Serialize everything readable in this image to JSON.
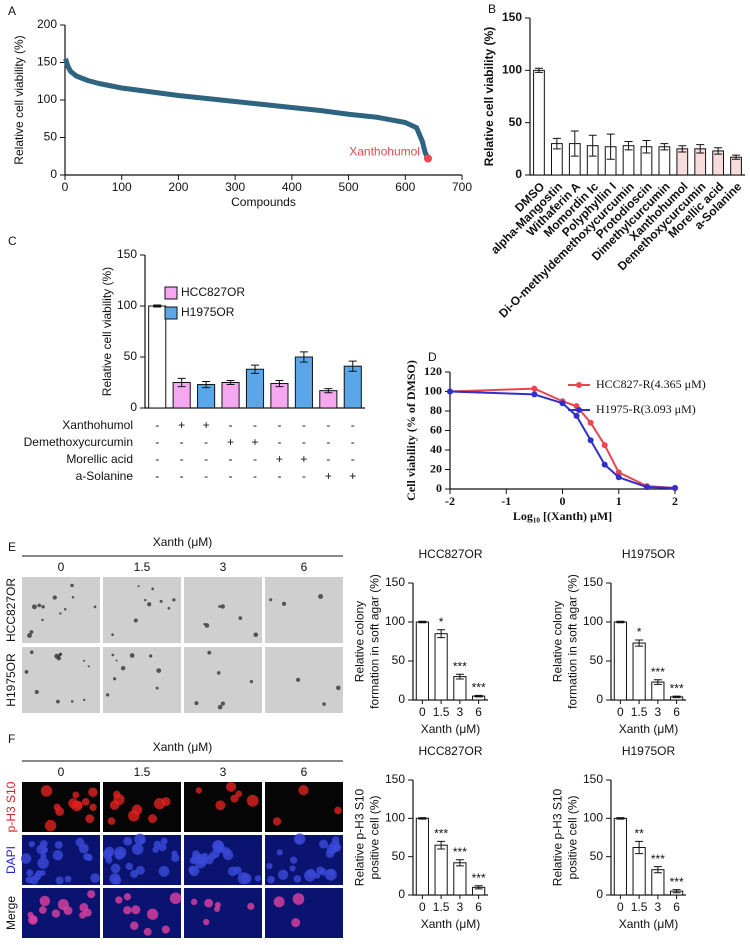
{
  "chart_data": [
    {
      "type": "line",
      "label": "A",
      "x": [
        1,
        5,
        10,
        20,
        40,
        60,
        80,
        100,
        150,
        200,
        250,
        300,
        350,
        400,
        450,
        500,
        550,
        600,
        620,
        630,
        635,
        640
      ],
      "series": [
        {
          "color": "#2e6480",
          "values": [
            155,
            145,
            138,
            132,
            126,
            122,
            119,
            116,
            111,
            106,
            102,
            98,
            94,
            90,
            86,
            81,
            77,
            70,
            63,
            45,
            30,
            22
          ]
        }
      ],
      "annotation": "Xanthohumol",
      "highlight_color": "#e8474f",
      "xlim": [
        0,
        700
      ],
      "xticks": [
        0,
        100,
        200,
        300,
        400,
        500,
        600,
        700
      ],
      "ylim": [
        0,
        200
      ],
      "yticks": [
        0,
        50,
        100,
        150,
        200
      ],
      "xlabel": "Compounds",
      "ylabel": "Relative cell viability (%)"
    },
    {
      "type": "bar",
      "label": "B",
      "categories": [
        "DMSO",
        "alpha-Mangostin",
        "Withaferin A",
        "Momordin Ic",
        "Polyphyllin I",
        "Di-O-methyldemethoxycurcumin",
        "Protodioscin",
        "Dimethylcurcumin",
        "Xanthohumol",
        "Demethoxycurcumin",
        "Morellic acid",
        "a-Solanine"
      ],
      "values": [
        100,
        30,
        30,
        28,
        27,
        28,
        27,
        27,
        25,
        25,
        23,
        17
      ],
      "errors": [
        2,
        5,
        12,
        10,
        12,
        4,
        6,
        3,
        3,
        4,
        3,
        2
      ],
      "colors": [
        "#ffffff",
        "#ffffff",
        "#ffffff",
        "#ffffff",
        "#ffffff",
        "#ffffff",
        "#ffffff",
        "#ffffff",
        "#f8dcdc",
        "#f8dcdc",
        "#f8dcdc",
        "#f8dcdc"
      ],
      "ylim": [
        0,
        150
      ],
      "yticks": [
        0,
        50,
        100,
        150
      ],
      "ylabel": "Relative cell viability (%)"
    },
    {
      "type": "bar",
      "label": "C",
      "values": [
        100,
        25,
        23,
        25,
        38,
        24,
        50,
        17,
        41
      ],
      "errors": [
        1,
        4,
        3,
        2,
        4,
        3,
        5,
        2,
        5
      ],
      "colors": [
        "#ffffff",
        "#f5a8f0",
        "#5aa6e8",
        "#f5a8f0",
        "#5aa6e8",
        "#f5a8f0",
        "#5aa6e8",
        "#f5a8f0",
        "#5aa6e8"
      ],
      "legend": [
        {
          "name": "HCC827OR",
          "color": "#f5a8f0"
        },
        {
          "name": "H1975OR",
          "color": "#5aa6e8"
        }
      ],
      "treatments": [
        {
          "name": "Xanthohumol",
          "signs": [
            "-",
            "+",
            "+",
            "-",
            "-",
            "-",
            "-",
            "-",
            "-"
          ]
        },
        {
          "name": "Demethoxycurcumin",
          "signs": [
            "-",
            "-",
            "-",
            "+",
            "+",
            "-",
            "-",
            "-",
            "-"
          ]
        },
        {
          "name": "Morellic acid",
          "signs": [
            "-",
            "-",
            "-",
            "-",
            "-",
            "+",
            "+",
            "-",
            "-"
          ]
        },
        {
          "name": "a-Solanine",
          "signs": [
            "-",
            "-",
            "-",
            "-",
            "-",
            "-",
            "-",
            "+",
            "+"
          ]
        }
      ],
      "ylim": [
        0,
        150
      ],
      "yticks": [
        0,
        50,
        100,
        150
      ],
      "ylabel": "Relative cell viability (%)"
    },
    {
      "type": "line",
      "label": "D",
      "markers": true,
      "x": [
        -2,
        -0.5,
        0,
        0.25,
        0.5,
        0.75,
        1,
        1.5,
        2
      ],
      "series": [
        {
          "name": "HCC827-R(4.365 μM)",
          "color": "#e8474f",
          "values": [
            100,
            103,
            90,
            85,
            68,
            45,
            17,
            3,
            1
          ]
        },
        {
          "name": "H1975-R(3.093 μM)",
          "color": "#2f2fd0",
          "values": [
            100,
            97,
            88,
            75,
            50,
            25,
            12,
            2,
            1
          ]
        }
      ],
      "xlim": [
        -2,
        2
      ],
      "xticks": [
        -2,
        -1,
        0,
        1,
        2
      ],
      "ylim": [
        0,
        120
      ],
      "yticks": [
        0,
        20,
        40,
        60,
        80,
        100,
        120
      ],
      "xlabel": "Log₁₀ [(Xanth) μM]",
      "ylabel": "Cell viability (% of DMSO)"
    },
    {
      "type": "bar",
      "label": "E",
      "title": "HCC827OR",
      "categories": [
        "0",
        "1.5",
        "3",
        "6"
      ],
      "values": [
        100,
        85,
        30,
        5
      ],
      "errors": [
        1,
        5,
        3,
        1
      ],
      "significance": [
        null,
        "*",
        "***",
        "***"
      ],
      "color": "#ffffff",
      "ylim": [
        0,
        150
      ],
      "yticks": [
        0,
        50,
        100,
        150
      ],
      "xlabel": "Xanth (μM)",
      "ylabel": [
        "Relative colony",
        "formation in soft agar (%)"
      ]
    },
    {
      "type": "bar",
      "title": "H1975OR",
      "categories": [
        "0",
        "1.5",
        "3",
        "6"
      ],
      "values": [
        100,
        73,
        23,
        4
      ],
      "errors": [
        1,
        4,
        3,
        1
      ],
      "significance": [
        null,
        "*",
        "***",
        "***"
      ],
      "color": "#ffffff",
      "ylim": [
        0,
        150
      ],
      "yticks": [
        0,
        50,
        100,
        150
      ],
      "xlabel": "Xanth (μM)",
      "ylabel": [
        "Relative colony",
        "formation in soft agar (%)"
      ]
    },
    {
      "type": "bar",
      "label": "F",
      "title": "HCC827OR",
      "categories": [
        "0",
        "1.5",
        "3",
        "6"
      ],
      "values": [
        100,
        65,
        42,
        10
      ],
      "errors": [
        1,
        5,
        4,
        2
      ],
      "significance": [
        null,
        "***",
        "***",
        "***"
      ],
      "color": "#ffffff",
      "ylim": [
        0,
        150
      ],
      "yticks": [
        0,
        50,
        100,
        150
      ],
      "xlabel": "Xanth (μM)",
      "ylabel": [
        "Relative p-H3 S10",
        "positive cell (%)"
      ]
    },
    {
      "type": "bar",
      "title": "H1975OR",
      "categories": [
        "0",
        "1.5",
        "3",
        "6"
      ],
      "values": [
        100,
        62,
        33,
        5
      ],
      "errors": [
        1,
        8,
        4,
        2
      ],
      "significance": [
        null,
        "**",
        "***",
        "***"
      ],
      "color": "#ffffff",
      "ylim": [
        0,
        150
      ],
      "yticks": [
        0,
        50,
        100,
        150
      ],
      "xlabel": "Xanth (μM)",
      "ylabel": [
        "Relative p-H3 S10",
        "positive cell (%)"
      ]
    }
  ],
  "micrographs": [
    {
      "header": "Xanth (μM)",
      "columns": [
        "0",
        "1.5",
        "3",
        "6"
      ],
      "rows": [
        "HCC827OR",
        "H1975OR"
      ],
      "row_colors": [
        "#111111",
        "#111111"
      ]
    },
    {
      "header": "Xanth (μM)",
      "columns": [
        "0",
        "1.5",
        "3",
        "6"
      ],
      "rows": [
        "p-H3 S10",
        "DAPI",
        "Merge"
      ],
      "row_colors": [
        "#e02020",
        "#2020e0",
        "#111111"
      ]
    }
  ]
}
